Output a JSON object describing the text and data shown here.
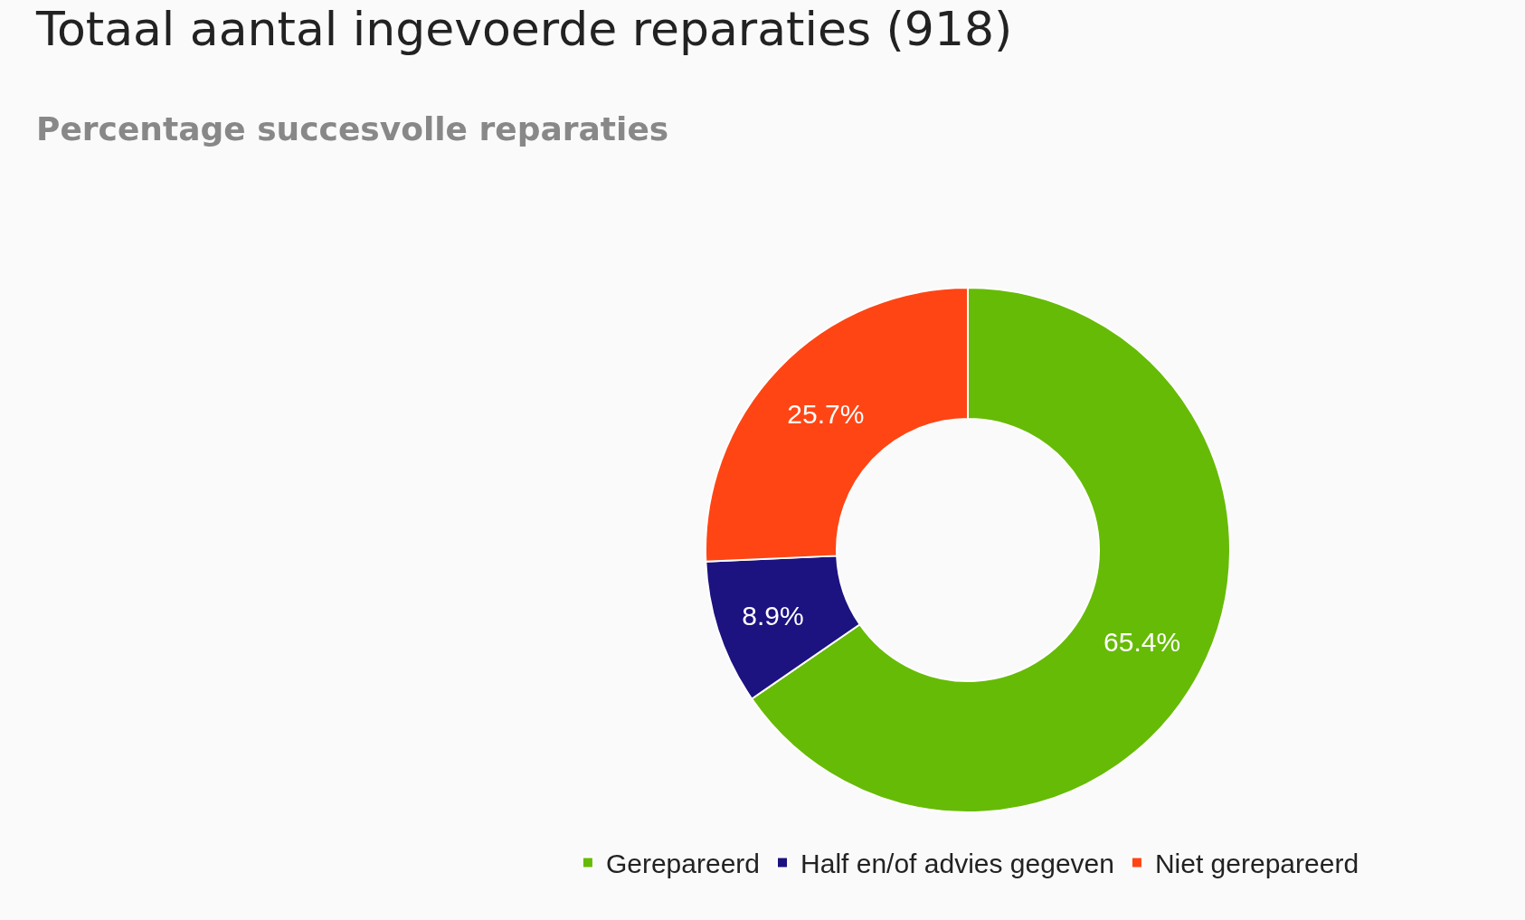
{
  "chart_data": {
    "type": "donut",
    "title": "Totaal aantal ingevoerde reparaties (918)",
    "subtitle": "Percentage succesvolle reparaties",
    "categories": [
      "Gerepareerd",
      "Half en/of advies gegeven",
      "Niet gerepareerd"
    ],
    "values": [
      65.4,
      8.9,
      25.7
    ],
    "value_labels": [
      "65.4%",
      "8.9%",
      "25.7%"
    ],
    "colors": [
      "#66bb06",
      "#1c1280",
      "#ff4514"
    ],
    "legend": "bottom"
  }
}
